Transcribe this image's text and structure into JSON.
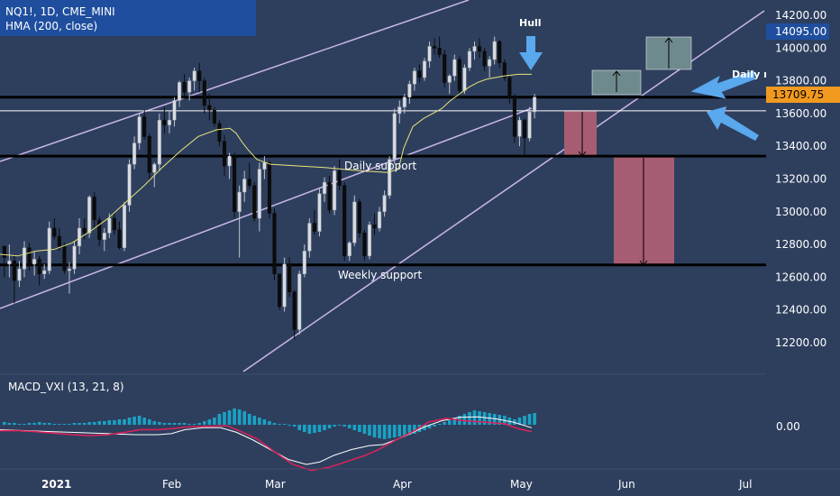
{
  "header": {
    "symbol_line": "NQ1!, 1D, CME_MINI",
    "indicator_line": "HMA (200, close)"
  },
  "macd": {
    "label": "MACD_VXI (13, 21, 8)",
    "zero_label": "0.00"
  },
  "annotations": {
    "hull": "Hull",
    "daily_support": "Daily support",
    "weekly_support": "Weekly support",
    "daily_cut": "Daily r"
  },
  "price_badges": {
    "upper": "14095.00",
    "current": "13709.75"
  },
  "colors": {
    "background": "#2e3f5e",
    "candle_up": "#d9dde3",
    "candle_down": "#0b0b0b",
    "hull": "#e8e47a",
    "channel": "#c9b6e8",
    "support": "#000000",
    "arrow": "#5aa8ee",
    "target_box": "#6e8a8e",
    "loss_box": "#a65d72",
    "macd_line": "#ffffff",
    "signal_line": "#e0215a",
    "histogram": "#1aa2c4",
    "badge_blue": "#1f4e9e",
    "badge_orange": "#f29a1f"
  },
  "chart_data": {
    "type": "candlestick",
    "x_ticks": [
      "2021",
      "Feb",
      "Mar",
      "Apr",
      "May",
      "Jun",
      "Jul"
    ],
    "y_ticks": [
      "14200.00",
      "14000.00",
      "13800.00",
      "13600.00",
      "13400.00",
      "13200.00",
      "13000.00",
      "12800.00",
      "12600.00",
      "12400.00",
      "12200.00"
    ],
    "ylim": [
      12100,
      14280
    ],
    "horizontal_levels": {
      "resistance": 13700,
      "white_line": 13617,
      "daily_support": 13340,
      "weekly_support": 12675
    },
    "candles": [
      [
        12790,
        12770,
        12600,
        12720
      ],
      [
        12680,
        12800,
        12600,
        12700
      ],
      [
        12700,
        12740,
        12440,
        12580
      ],
      [
        12580,
        12700,
        12540,
        12650
      ],
      [
        12650,
        12820,
        12600,
        12780
      ],
      [
        12780,
        12810,
        12640,
        12680
      ],
      [
        12680,
        12760,
        12610,
        12710
      ],
      [
        12710,
        12730,
        12550,
        12620
      ],
      [
        12620,
        12680,
        12590,
        12640
      ],
      [
        12640,
        12940,
        12620,
        12900
      ],
      [
        12900,
        12960,
        12830,
        12850
      ],
      [
        12850,
        12900,
        12760,
        12790
      ],
      [
        12790,
        12810,
        12620,
        12640
      ],
      [
        12640,
        12690,
        12500,
        12650
      ],
      [
        12650,
        12820,
        12620,
        12790
      ],
      [
        12790,
        12960,
        12740,
        12900
      ],
      [
        12900,
        12960,
        12830,
        12870
      ],
      [
        12870,
        13100,
        12840,
        13090
      ],
      [
        13090,
        13120,
        12900,
        12950
      ],
      [
        12950,
        12970,
        12790,
        12830
      ],
      [
        12830,
        12900,
        12760,
        12870
      ],
      [
        12870,
        12990,
        12840,
        12960
      ],
      [
        12960,
        13000,
        12860,
        12890
      ],
      [
        12890,
        12940,
        12770,
        12780
      ],
      [
        12780,
        13060,
        12760,
        13040
      ],
      [
        13040,
        13320,
        13000,
        13290
      ],
      [
        13290,
        13460,
        13260,
        13420
      ],
      [
        13420,
        13600,
        13380,
        13580
      ],
      [
        13580,
        13620,
        13440,
        13460
      ],
      [
        13460,
        13480,
        13190,
        13240
      ],
      [
        13240,
        13300,
        13150,
        13290
      ],
      [
        13290,
        13600,
        13250,
        13560
      ],
      [
        13560,
        13640,
        13480,
        13530
      ],
      [
        13530,
        13620,
        13480,
        13560
      ],
      [
        13560,
        13700,
        13520,
        13680
      ],
      [
        13680,
        13800,
        13640,
        13790
      ],
      [
        13790,
        13840,
        13700,
        13730
      ],
      [
        13730,
        13820,
        13680,
        13800
      ],
      [
        13800,
        13880,
        13740,
        13860
      ],
      [
        13860,
        13910,
        13730,
        13800
      ],
      [
        13800,
        13820,
        13600,
        13650
      ],
      [
        13650,
        13720,
        13560,
        13620
      ],
      [
        13620,
        13640,
        13520,
        13540
      ],
      [
        13540,
        13560,
        13400,
        13430
      ],
      [
        13430,
        13470,
        13220,
        13280
      ],
      [
        13280,
        13360,
        13200,
        13340
      ],
      [
        13340,
        13360,
        12960,
        13000
      ],
      [
        13000,
        13160,
        12720,
        13120
      ],
      [
        13120,
        13250,
        13060,
        13200
      ],
      [
        13200,
        13300,
        13140,
        13160
      ],
      [
        13160,
        13180,
        12940,
        12960
      ],
      [
        12960,
        13300,
        12880,
        13260
      ],
      [
        13260,
        13340,
        13200,
        13300
      ],
      [
        13300,
        13310,
        12960,
        12990
      ],
      [
        12990,
        13020,
        12580,
        12620
      ],
      [
        12620,
        12620,
        12400,
        12420
      ],
      [
        12420,
        12720,
        12390,
        12680
      ],
      [
        12680,
        12720,
        12480,
        12510
      ],
      [
        12510,
        12520,
        12220,
        12280
      ],
      [
        12280,
        12640,
        12250,
        12620
      ],
      [
        12620,
        12800,
        12600,
        12760
      ],
      [
        12760,
        12960,
        12720,
        12930
      ],
      [
        12930,
        13010,
        12860,
        12880
      ],
      [
        12880,
        13140,
        12850,
        13110
      ],
      [
        13110,
        13210,
        13060,
        13180
      ],
      [
        13180,
        13220,
        12990,
        13010
      ],
      [
        13010,
        13280,
        12980,
        13250
      ],
      [
        13250,
        13320,
        13130,
        13160
      ],
      [
        13160,
        13180,
        12700,
        12730
      ],
      [
        12730,
        12820,
        12700,
        12810
      ],
      [
        12810,
        13100,
        12790,
        13060
      ],
      [
        13060,
        13080,
        12840,
        12870
      ],
      [
        12870,
        12890,
        12700,
        12730
      ],
      [
        12730,
        12940,
        12710,
        12920
      ],
      [
        12920,
        12990,
        12860,
        12900
      ],
      [
        12900,
        13030,
        12880,
        13000
      ],
      [
        13000,
        13130,
        12970,
        13100
      ],
      [
        13100,
        13340,
        13080,
        13320
      ],
      [
        13320,
        13630,
        13290,
        13600
      ],
      [
        13600,
        13680,
        13540,
        13640
      ],
      [
        13640,
        13720,
        13600,
        13700
      ],
      [
        13700,
        13800,
        13660,
        13780
      ],
      [
        13780,
        13880,
        13740,
        13860
      ],
      [
        13860,
        13900,
        13790,
        13820
      ],
      [
        13820,
        13940,
        13800,
        13920
      ],
      [
        13920,
        14040,
        13880,
        14010
      ],
      [
        14010,
        14060,
        13960,
        14000
      ],
      [
        14000,
        14070,
        13940,
        13960
      ],
      [
        13960,
        13990,
        13760,
        13790
      ],
      [
        13790,
        13840,
        13720,
        13830
      ],
      [
        13830,
        13960,
        13800,
        13930
      ],
      [
        13930,
        13950,
        13710,
        13740
      ],
      [
        13740,
        13900,
        13720,
        13880
      ],
      [
        13880,
        14000,
        13860,
        13980
      ],
      [
        13980,
        14040,
        13930,
        14010
      ],
      [
        14010,
        14060,
        13940,
        13980
      ],
      [
        13980,
        14000,
        13860,
        13890
      ],
      [
        13890,
        13950,
        13820,
        13930
      ],
      [
        13930,
        14070,
        13900,
        14040
      ],
      [
        14040,
        14050,
        13880,
        13910
      ],
      [
        13910,
        13930,
        13800,
        13820
      ],
      [
        13820,
        13840,
        13660,
        13700
      ],
      [
        13700,
        13720,
        13420,
        13460
      ],
      [
        13460,
        13580,
        13400,
        13560
      ],
      [
        13560,
        13570,
        13340,
        13450
      ],
      [
        13450,
        13640,
        13430,
        13610
      ],
      [
        13610,
        13720,
        13570,
        13700
      ]
    ],
    "hull_ma": [
      [
        0,
        12740
      ],
      [
        20,
        12730
      ],
      [
        40,
        12760
      ],
      [
        60,
        12770
      ],
      [
        80,
        12810
      ],
      [
        100,
        12880
      ],
      [
        120,
        12960
      ],
      [
        140,
        13060
      ],
      [
        160,
        13160
      ],
      [
        180,
        13270
      ],
      [
        200,
        13370
      ],
      [
        220,
        13460
      ],
      [
        240,
        13500
      ],
      [
        255,
        13510
      ],
      [
        262,
        13480
      ],
      [
        268,
        13430
      ],
      [
        275,
        13380
      ],
      [
        285,
        13320
      ],
      [
        300,
        13290
      ],
      [
        330,
        13280
      ],
      [
        360,
        13270
      ],
      [
        400,
        13250
      ],
      [
        430,
        13240
      ],
      [
        442,
        13260
      ],
      [
        448,
        13390
      ],
      [
        458,
        13520
      ],
      [
        470,
        13570
      ],
      [
        480,
        13600
      ],
      [
        490,
        13630
      ],
      [
        500,
        13680
      ],
      [
        510,
        13720
      ],
      [
        520,
        13760
      ],
      [
        530,
        13790
      ],
      [
        540,
        13810
      ],
      [
        560,
        13830
      ],
      [
        575,
        13840
      ],
      [
        590,
        13840
      ]
    ],
    "macd_line": [
      [
        0,
        10
      ],
      [
        30,
        12
      ],
      [
        60,
        14
      ],
      [
        90,
        16
      ],
      [
        120,
        18
      ],
      [
        150,
        20
      ],
      [
        175,
        20
      ],
      [
        190,
        18
      ],
      [
        205,
        10
      ],
      [
        225,
        6
      ],
      [
        245,
        6
      ],
      [
        262,
        15
      ],
      [
        280,
        30
      ],
      [
        300,
        50
      ],
      [
        320,
        70
      ],
      [
        340,
        80
      ],
      [
        355,
        75
      ],
      [
        370,
        62
      ],
      [
        390,
        50
      ],
      [
        410,
        42
      ],
      [
        425,
        40
      ],
      [
        440,
        30
      ],
      [
        455,
        18
      ],
      [
        470,
        5
      ],
      [
        490,
        -8
      ],
      [
        510,
        -15
      ],
      [
        530,
        -16
      ],
      [
        550,
        -12
      ],
      [
        570,
        -5
      ],
      [
        590,
        6
      ]
    ],
    "signal_line": [
      [
        0,
        12
      ],
      [
        20,
        12
      ],
      [
        40,
        14
      ],
      [
        60,
        17
      ],
      [
        80,
        20
      ],
      [
        100,
        22
      ],
      [
        120,
        20
      ],
      [
        140,
        15
      ],
      [
        155,
        10
      ],
      [
        175,
        10
      ],
      [
        190,
        8
      ],
      [
        210,
        4
      ],
      [
        235,
        3
      ],
      [
        252,
        2
      ],
      [
        265,
        12
      ],
      [
        285,
        28
      ],
      [
        305,
        55
      ],
      [
        325,
        80
      ],
      [
        345,
        92
      ],
      [
        365,
        86
      ],
      [
        385,
        74
      ],
      [
        405,
        62
      ],
      [
        420,
        50
      ],
      [
        440,
        30
      ],
      [
        460,
        12
      ],
      [
        475,
        -5
      ],
      [
        495,
        -13
      ],
      [
        515,
        -8
      ],
      [
        540,
        -5
      ],
      [
        560,
        -2
      ],
      [
        575,
        8
      ],
      [
        590,
        14
      ]
    ],
    "macd_histogram": [
      -3,
      -2,
      -2,
      -1,
      -1,
      -2,
      -2,
      -3,
      -2,
      -2,
      -1,
      -1,
      -1,
      -1,
      -2,
      -2,
      -2,
      -3,
      -3,
      -4,
      -4,
      -5,
      -5,
      -6,
      -6,
      -8,
      -9,
      -10,
      -8,
      -6,
      -4,
      -3,
      -2,
      -2,
      -2,
      -2,
      -2,
      -1,
      -1,
      -2,
      -4,
      -6,
      -8,
      -12,
      -14,
      -16,
      -18,
      -17,
      -15,
      -12,
      -10,
      -8,
      -6,
      -4,
      -2,
      -1,
      -1,
      0,
      2,
      6,
      8,
      10,
      9,
      8,
      6,
      4,
      2,
      1,
      2,
      4,
      6,
      8,
      10,
      12,
      14,
      15,
      16,
      15,
      14,
      13,
      12,
      11,
      10,
      8,
      6,
      4,
      2,
      -1,
      -3,
      -5,
      -7,
      -10,
      -12,
      -14,
      -16,
      -15,
      -14,
      -13,
      -12,
      -11,
      -10,
      -8,
      -6,
      -8,
      -10,
      -12,
      -13
    ]
  }
}
